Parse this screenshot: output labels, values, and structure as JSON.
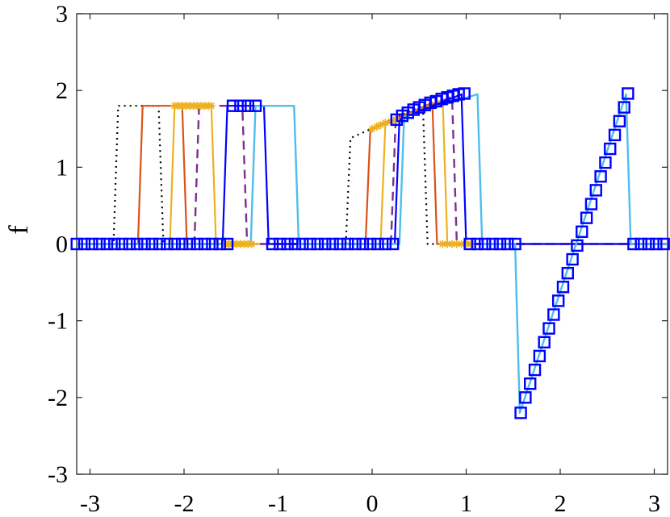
{
  "chart_data": {
    "type": "line",
    "title": "",
    "xlabel": "",
    "ylabel": "f",
    "xlim": [
      -3.14159,
      3.14159
    ],
    "ylim": [
      -3,
      3
    ],
    "xticks": [
      -3,
      -2,
      -1,
      0,
      1,
      2,
      3
    ],
    "yticks": [
      -3,
      -2,
      -1,
      0,
      1,
      2,
      3
    ],
    "xtick_labels": [
      "-3",
      "-2",
      "-1",
      "0",
      "1",
      "2",
      "3"
    ],
    "ytick_labels": [
      "-3",
      "-2",
      "-1",
      "0",
      "1",
      "2",
      "3"
    ],
    "grid": false,
    "series": [
      {
        "color": "#000000",
        "style": "dotted",
        "width": 2.2,
        "marker": "none",
        "x": [
          -3.14,
          -2.75,
          -2.7,
          -2.27,
          -2.22,
          -0.28,
          -0.23,
          0.54,
          0.59,
          3.14
        ],
        "y": [
          0,
          0,
          1.8,
          1.8,
          0,
          0,
          1.38,
          1.8,
          0,
          0
        ]
      },
      {
        "color": "#D95319",
        "style": "solid",
        "width": 2.2,
        "marker": "none",
        "x": [
          -3.14,
          -2.49,
          -2.44,
          -2.02,
          -1.97,
          -0.07,
          -0.02,
          0.64,
          0.69,
          3.14
        ],
        "y": [
          0,
          0,
          1.8,
          1.8,
          0,
          0,
          1.48,
          1.84,
          0,
          0
        ]
      },
      {
        "color": "#EDB120",
        "style": "solid",
        "width": 2.2,
        "marker": "star",
        "x": [
          -3.14,
          -2.15,
          -2.1,
          -1.71,
          -1.66,
          0.09,
          0.14,
          0.75,
          0.8,
          3.14
        ],
        "y": [
          0,
          0,
          1.8,
          1.8,
          0,
          0,
          1.55,
          1.88,
          0,
          0
        ]
      },
      {
        "color": "#7E2F8E",
        "style": "dashed",
        "width": 2.4,
        "marker": "none",
        "x": [
          -3.14,
          -1.89,
          -1.84,
          -1.38,
          -1.33,
          0.2,
          0.25,
          0.85,
          0.9,
          3.14
        ],
        "y": [
          0,
          0,
          1.8,
          1.8,
          0,
          0,
          1.6,
          1.92,
          0,
          0
        ]
      },
      {
        "color": "#0000FF",
        "style": "solid",
        "width": 2.2,
        "marker": "none",
        "x": [
          -3.14,
          -1.59,
          -1.54,
          -1.15,
          -1.1,
          0.24,
          0.29,
          0.95,
          1.0,
          3.14
        ],
        "y": [
          0,
          0,
          1.8,
          1.8,
          0,
          0,
          1.62,
          1.95,
          0,
          0
        ]
      },
      {
        "color": "#4DBEEE",
        "style": "solid",
        "width": 2.4,
        "marker": "square",
        "marker_edge": "#0000FF",
        "x": [
          -3.14,
          -1.54,
          -1.49,
          -1.29,
          -1.24,
          -0.83,
          -0.78,
          0.29,
          0.34,
          1.12,
          1.17,
          1.52,
          1.57,
          2.7,
          2.75,
          3.14
        ],
        "y": [
          0,
          0,
          0,
          0,
          1.8,
          1.8,
          0,
          0,
          1.65,
          1.95,
          0,
          0,
          -2.2,
          1.95,
          0,
          0
        ]
      }
    ],
    "markers": [
      {
        "color": "#EDB120",
        "marker": "star",
        "x": [
          -2.1,
          -2.06,
          -2.02,
          -1.98,
          -1.94,
          -1.9,
          -1.86,
          -1.82,
          -1.78,
          -1.74,
          -1.71,
          -1.56,
          -1.52,
          -1.48,
          -1.44,
          -1.4,
          -1.36,
          -1.32,
          -1.28,
          0.0,
          0.05,
          0.09,
          0.14,
          0.2,
          0.25,
          0.75,
          0.8,
          0.85,
          0.9,
          0.95,
          1.0,
          1.05
        ],
        "y": [
          1.8,
          1.8,
          1.8,
          1.8,
          1.8,
          1.8,
          1.8,
          1.8,
          1.8,
          1.8,
          1.8,
          0,
          0,
          0,
          0,
          0,
          0,
          0,
          0,
          1.5,
          1.53,
          1.55,
          1.58,
          1.6,
          1.62,
          0,
          0,
          0,
          0,
          0,
          0,
          0
        ]
      },
      {
        "color": "#0000FF",
        "marker": "square",
        "x": [
          -3.14,
          -3.06,
          -2.98,
          -2.9,
          -2.82,
          -2.74,
          -2.66,
          -2.58,
          -2.5,
          -2.42,
          -2.34,
          -2.26,
          -2.18,
          -2.1,
          -2.02,
          -1.94,
          -1.86,
          -1.78,
          -1.7,
          -1.62,
          -1.54,
          -1.48,
          -1.4,
          -1.32,
          -1.24,
          -1.06,
          -0.98,
          -0.9,
          -0.82,
          -0.74,
          -0.66,
          -0.58,
          -0.5,
          -0.42,
          -0.34,
          -0.26,
          -0.18,
          -0.1,
          -0.02,
          0.06,
          0.14,
          0.22,
          0.26,
          0.32,
          0.38,
          0.44,
          0.5,
          0.56,
          0.62,
          0.68,
          0.74,
          0.8,
          0.86,
          0.92,
          0.98,
          1.04,
          1.12,
          1.2,
          1.28,
          1.36,
          1.44,
          1.52,
          1.58,
          1.63,
          1.68,
          1.73,
          1.78,
          1.83,
          1.88,
          1.93,
          1.98,
          2.03,
          2.08,
          2.13,
          2.18,
          2.23,
          2.28,
          2.33,
          2.38,
          2.43,
          2.48,
          2.53,
          2.58,
          2.63,
          2.68,
          2.72,
          2.78,
          2.86,
          2.94,
          3.02,
          3.1
        ],
        "y": [
          0,
          0,
          0,
          0,
          0,
          0,
          0,
          0,
          0,
          0,
          0,
          0,
          0,
          0,
          0,
          0,
          0,
          0,
          0,
          0,
          0,
          1.8,
          1.8,
          1.8,
          1.8,
          0,
          0,
          0,
          0,
          0,
          0,
          0,
          0,
          0,
          0,
          0,
          0,
          0,
          0,
          0,
          0,
          0,
          1.62,
          1.67,
          1.71,
          1.75,
          1.78,
          1.81,
          1.84,
          1.86,
          1.89,
          1.91,
          1.93,
          1.95,
          1.96,
          0,
          0,
          0,
          0,
          0,
          0,
          0,
          -2.2,
          -2.0,
          -1.82,
          -1.64,
          -1.46,
          -1.28,
          -1.1,
          -0.92,
          -0.74,
          -0.56,
          -0.38,
          -0.2,
          -0.02,
          0.16,
          0.34,
          0.52,
          0.7,
          0.88,
          1.06,
          1.24,
          1.42,
          1.6,
          1.78,
          1.96,
          0,
          0,
          0,
          0,
          0
        ]
      }
    ]
  }
}
